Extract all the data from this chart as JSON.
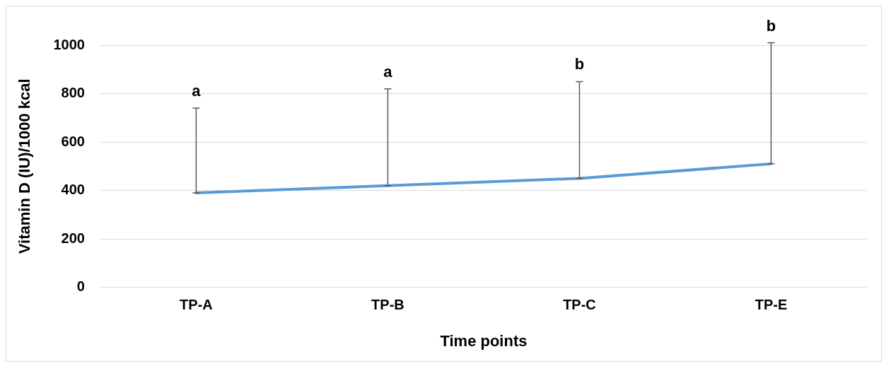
{
  "chart_data": {
    "type": "line",
    "xlabel": "Time points",
    "ylabel": "Vitamin D (IU)/1000 kcal",
    "categories": [
      "TP-A",
      "TP-B",
      "TP-C",
      "TP-E"
    ],
    "series": [
      {
        "color": "#5b9bd5",
        "values": [
          390,
          420,
          450,
          510
        ],
        "errors": [
          [
            390,
            740
          ],
          [
            420,
            820
          ],
          [
            450,
            850
          ],
          [
            510,
            1010
          ]
        ]
      }
    ],
    "ylim": [
      0,
      1000
    ],
    "yticks": [
      0,
      200,
      400,
      600,
      800,
      1000
    ],
    "grid": "y",
    "legend": false,
    "marker": "none",
    "line_style": "solid",
    "annotations": [
      {
        "text": "a",
        "x": "TP-A",
        "y": 740
      },
      {
        "text": "a",
        "x": "TP-B",
        "y": 820
      },
      {
        "text": "b",
        "x": "TP-C",
        "y": 850
      },
      {
        "text": "b",
        "x": "TP-E",
        "y": 1010
      }
    ]
  }
}
